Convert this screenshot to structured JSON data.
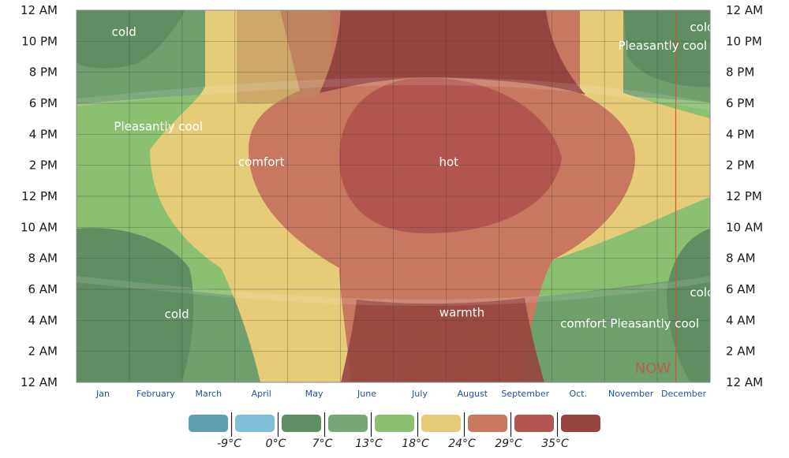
{
  "chart_data": {
    "type": "heatmap",
    "title": "",
    "xlabel": "",
    "ylabel": "",
    "x_categories": [
      "Jan",
      "February",
      "March",
      "April",
      "May",
      "June",
      "July",
      "August",
      "September",
      "Oct.",
      "November",
      "December"
    ],
    "y_ticks": [
      "12 AM",
      "2 AM",
      "4 AM",
      "6 AM",
      "8 AM",
      "10 AM",
      "12 PM",
      "2 PM",
      "4 PM",
      "6 PM",
      "8 PM",
      "10 PM",
      "12 AM"
    ],
    "legend": {
      "colors": [
        "#5e9eb0",
        "#7fc0d6",
        "#5f8e62",
        "#77a878",
        "#8bc070",
        "#e6cc78",
        "#c97860",
        "#b35650",
        "#964440"
      ],
      "labels": [
        "-9°C",
        "0°C",
        "7°C",
        "13°C",
        "18°C",
        "24°C",
        "29°C",
        "35°C"
      ]
    },
    "zone_labels": [
      {
        "text": "cold",
        "month": 0.9,
        "hour": 22.6
      },
      {
        "text": "Pleasantly cool",
        "month": 1.55,
        "hour": 16.5
      },
      {
        "text": "comfort",
        "month": 3.5,
        "hour": 14.2
      },
      {
        "text": "hot",
        "month": 7.05,
        "hour": 14.2
      },
      {
        "text": "cold",
        "month": 1.9,
        "hour": 4.4
      },
      {
        "text": "warmth",
        "month": 7.3,
        "hour": 4.5
      },
      {
        "text": "comfort",
        "month": 9.6,
        "hour": 3.8
      },
      {
        "text": "Pleasantly cool",
        "month": 10.95,
        "hour": 3.8
      },
      {
        "text": "cold",
        "month": 11.85,
        "hour": 5.8
      },
      {
        "text": "cold",
        "month": 11.85,
        "hour": 22.9
      },
      {
        "text": "Pleasantly cool",
        "month": 11.1,
        "hour": 21.7
      }
    ],
    "now": {
      "label": "NOW",
      "month": 11.35
    },
    "grid": true
  }
}
